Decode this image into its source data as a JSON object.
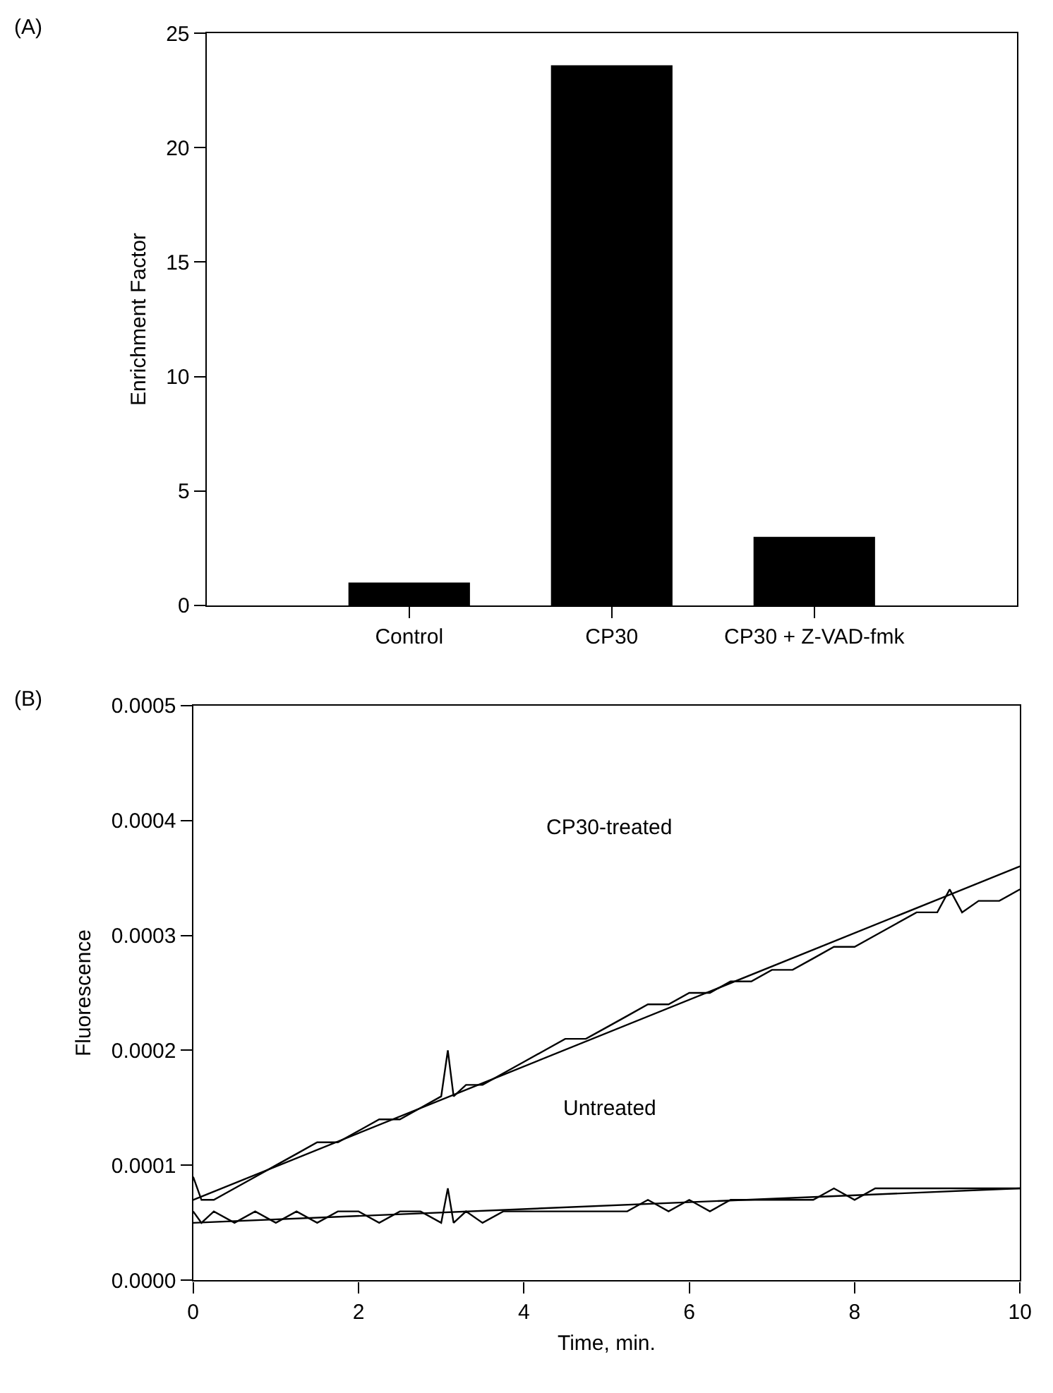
{
  "chart_data": [
    {
      "type": "bar",
      "ylabel": "Enrichment Factor",
      "annotations": [
        "(A)"
      ],
      "categories": [
        "Control",
        "CP30",
        "CP30 + Z-VAD-fmk"
      ],
      "values": [
        1.0,
        23.6,
        3.0
      ],
      "color": "#000000",
      "ylim": [
        0,
        25
      ],
      "yticks": [
        0,
        5,
        10,
        15,
        20,
        25
      ]
    },
    {
      "type": "line",
      "xlabel": "Time, min.",
      "ylabel": "Fluorescence",
      "annotations": [
        "(B)",
        "CP30-treated",
        "Untreated"
      ],
      "series": [
        {
          "color": "#000000",
          "x": [
            0,
            0.1,
            0.25,
            0.5,
            0.75,
            1,
            1.25,
            1.5,
            1.75,
            2,
            2.25,
            2.5,
            2.75,
            3,
            3.08,
            3.15,
            3.3,
            3.5,
            3.75,
            4,
            4.25,
            4.5,
            4.75,
            5,
            5.25,
            5.5,
            5.75,
            6,
            6.25,
            6.5,
            6.75,
            7,
            7.25,
            7.5,
            7.75,
            8,
            8.25,
            8.5,
            8.75,
            9,
            9.15,
            9.3,
            9.5,
            9.75,
            10
          ],
          "values": [
            9e-05,
            7e-05,
            7e-05,
            8e-05,
            9e-05,
            0.0001,
            0.00011,
            0.00012,
            0.00012,
            0.00013,
            0.00014,
            0.00014,
            0.00015,
            0.00016,
            0.0002,
            0.00016,
            0.00017,
            0.00017,
            0.00018,
            0.00019,
            0.0002,
            0.00021,
            0.00021,
            0.00022,
            0.00023,
            0.00024,
            0.00024,
            0.00025,
            0.00025,
            0.00026,
            0.00026,
            0.00027,
            0.00027,
            0.00028,
            0.00029,
            0.00029,
            0.0003,
            0.00031,
            0.00032,
            0.00032,
            0.00034,
            0.00032,
            0.00033,
            0.00033,
            0.00034
          ]
        },
        {
          "color": "#000000",
          "x": [
            0,
            0.1,
            0.25,
            0.5,
            0.75,
            1,
            1.25,
            1.5,
            1.75,
            2,
            2.25,
            2.5,
            2.75,
            3,
            3.08,
            3.15,
            3.3,
            3.5,
            3.75,
            4,
            4.25,
            4.5,
            4.75,
            5,
            5.25,
            5.5,
            5.75,
            6,
            6.25,
            6.5,
            6.75,
            7,
            7.25,
            7.5,
            7.75,
            8,
            8.25,
            8.5,
            8.75,
            9,
            9.15,
            9.3,
            9.5,
            9.75,
            10
          ],
          "values": [
            6e-05,
            5e-05,
            6e-05,
            5e-05,
            6e-05,
            5e-05,
            6e-05,
            5e-05,
            6e-05,
            6e-05,
            5e-05,
            6e-05,
            6e-05,
            5e-05,
            8e-05,
            5e-05,
            6e-05,
            5e-05,
            6e-05,
            6e-05,
            6e-05,
            6e-05,
            6e-05,
            6e-05,
            6e-05,
            7e-05,
            6e-05,
            7e-05,
            6e-05,
            7e-05,
            7e-05,
            7e-05,
            7e-05,
            7e-05,
            8e-05,
            7e-05,
            8e-05,
            8e-05,
            8e-05,
            8e-05,
            8e-05,
            8e-05,
            8e-05,
            8e-05,
            8e-05
          ]
        },
        {
          "color": "#000000",
          "x": [
            0,
            10
          ],
          "values": [
            7e-05,
            0.00036
          ]
        },
        {
          "color": "#000000",
          "x": [
            0,
            10
          ],
          "values": [
            5e-05,
            8e-05
          ]
        }
      ],
      "xlim": [
        0,
        10
      ],
      "xticks": [
        0,
        2,
        4,
        6,
        8,
        10
      ],
      "ylim": [
        0,
        0.0005
      ],
      "yticks": [
        {
          "value": 0,
          "label": "0.0000"
        },
        {
          "value": 0.0001,
          "label": "0.0001"
        },
        {
          "value": 0.0002,
          "label": "0.0002"
        },
        {
          "value": 0.0003,
          "label": "0.0003"
        },
        {
          "value": 0.0004,
          "label": "0.0004"
        },
        {
          "value": 0.0005,
          "label": "0.0005"
        }
      ],
      "marker": "none",
      "line_style": "solid"
    }
  ]
}
